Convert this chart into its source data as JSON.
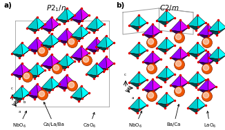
{
  "fig_width": 3.26,
  "fig_height": 1.89,
  "dpi": 100,
  "bg_color": "#ffffff",
  "teal_color": "#00CCCC",
  "teal_dark": "#009999",
  "teal_light": "#44DDDD",
  "purple_color": "#9900FF",
  "purple_dark": "#6600BB",
  "purple_light": "#BB44FF",
  "orange_color": "#EE5500",
  "orange_hi": "#FF9944",
  "red_dot": "#DD0000",
  "gray_line": "#888888",
  "panel_a_label": "a)",
  "panel_b_label": "b)",
  "title_a": "$P2_1/n$",
  "title_b": "$C2/m$",
  "labels_a": [
    "NbO$_6$",
    "Ca/La/Ba",
    "CaO$_6$"
  ],
  "labels_b": [
    "NbO$_6$",
    "Ba/Ca",
    "LaO$_6$"
  ]
}
